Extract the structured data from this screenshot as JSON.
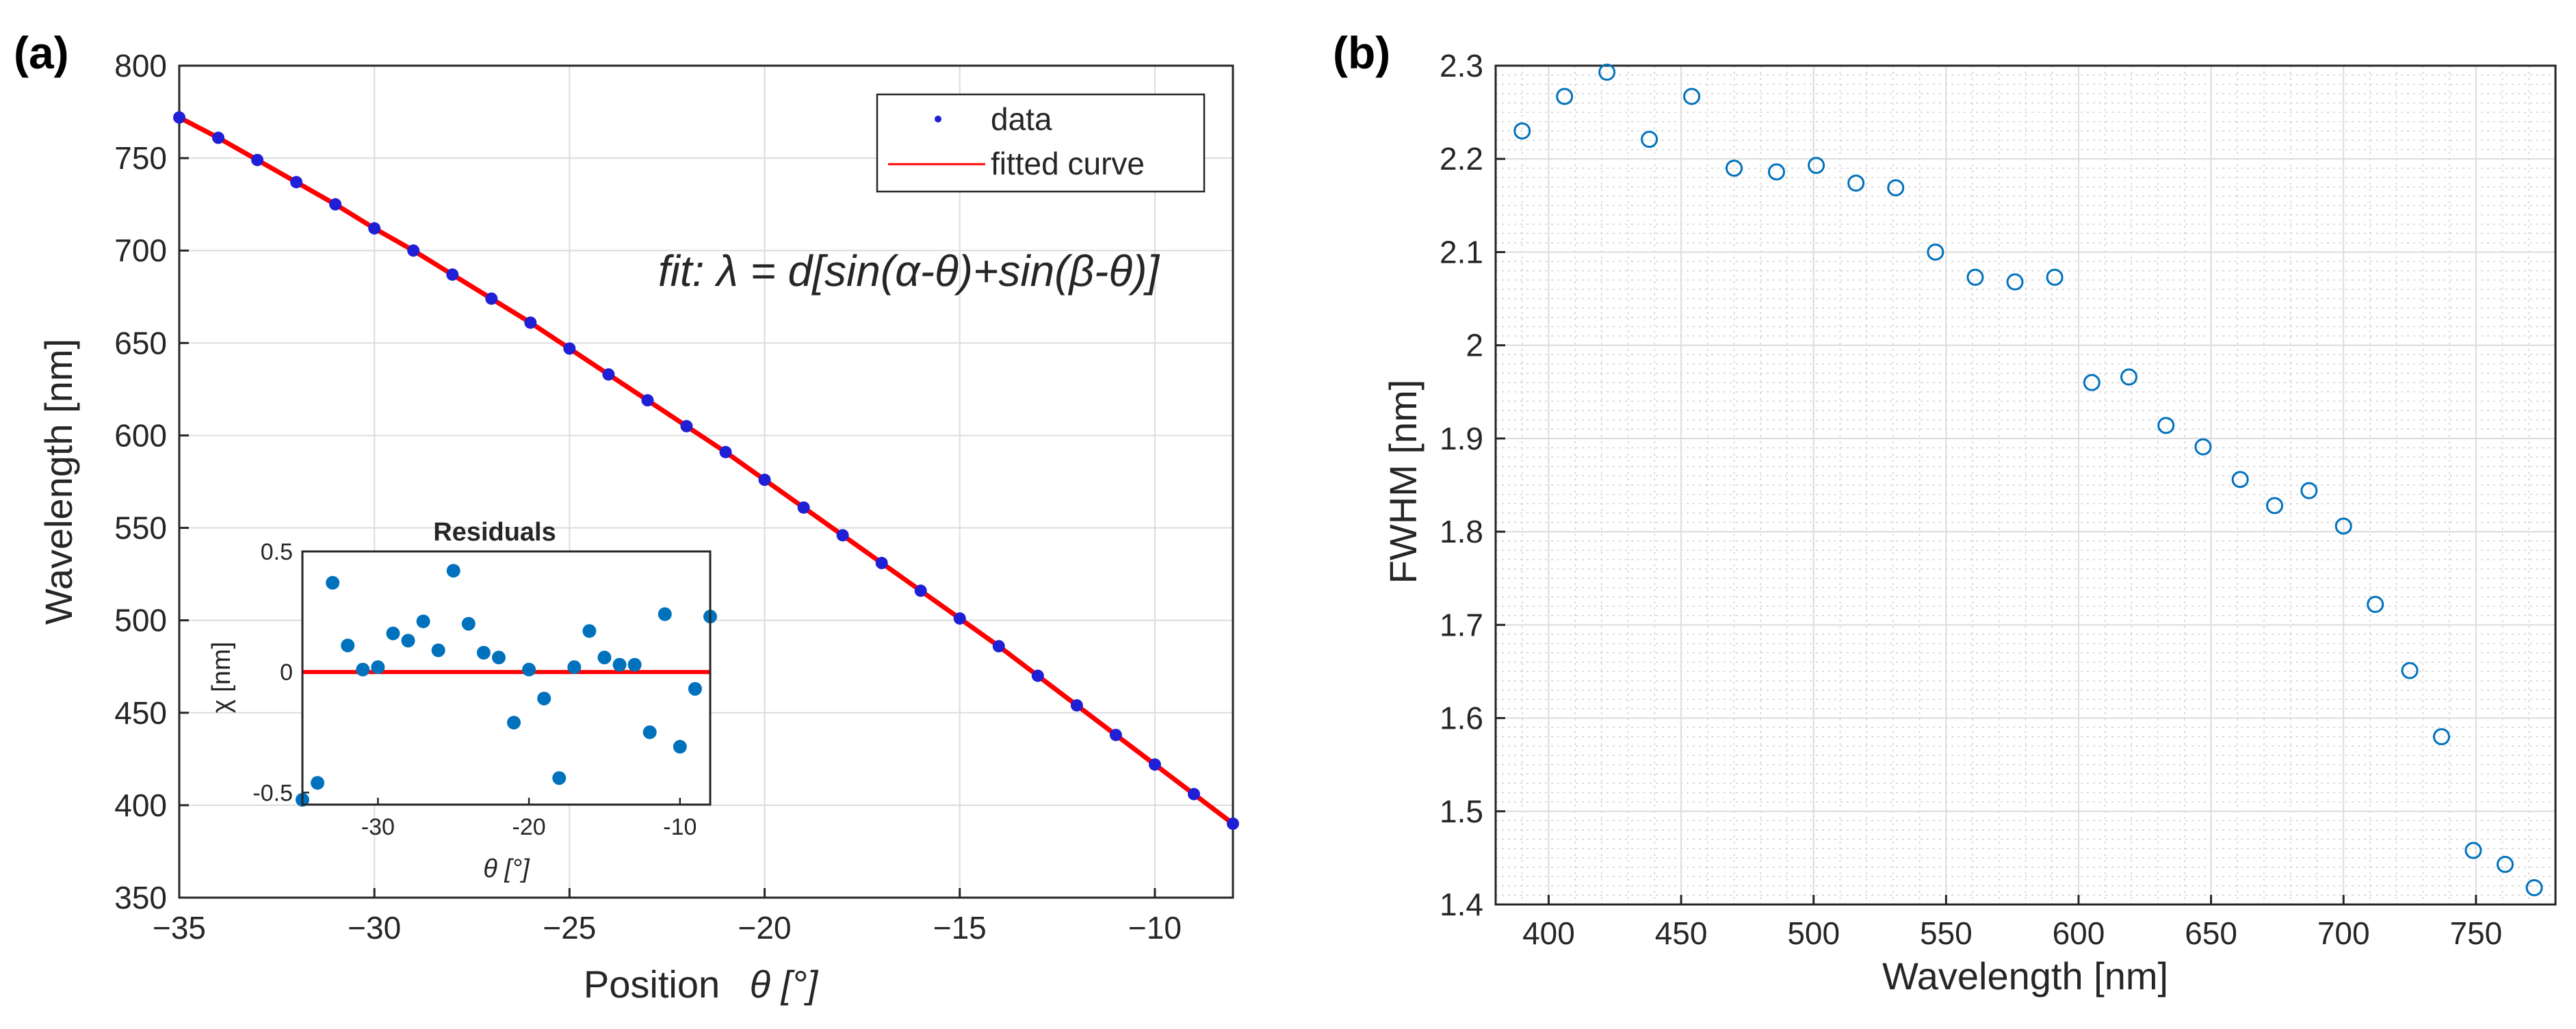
{
  "colors": {
    "data_blue": "#1f1fd6",
    "fit_red": "#ff0000",
    "residual_blue": "#0072bd",
    "scatter_blue": "#0072bd"
  },
  "chart_data": [
    {
      "panel": "(a)",
      "type": "line",
      "xlabel": "Position",
      "xlabel_symbol": "θ [°]",
      "ylabel": "Wavelength [nm]",
      "xlim": [
        -35,
        -8
      ],
      "ylim": [
        350,
        800
      ],
      "xticks": [
        -35,
        -30,
        -25,
        -20,
        -15,
        -10
      ],
      "xtick_labels": [
        "−35",
        "−30",
        "−25",
        "−20",
        "−15",
        "−10"
      ],
      "yticks": [
        350,
        400,
        450,
        500,
        550,
        600,
        650,
        700,
        750,
        800
      ],
      "grid": true,
      "annotation": "fit: λ = d[sin(α-θ)+sin(β-θ)]",
      "legend": {
        "location": "top-right",
        "entries": [
          "data",
          "fitted curve"
        ]
      },
      "series": [
        {
          "name": "data",
          "style": "points",
          "x": [
            -35,
            -34,
            -33,
            -32,
            -31,
            -30,
            -29,
            -28,
            -27,
            -26,
            -25,
            -24,
            -23,
            -22,
            -21,
            -20,
            -19,
            -18,
            -17,
            -16,
            -15,
            -14,
            -13,
            -12,
            -11,
            -10,
            -9,
            -8
          ],
          "y": [
            772,
            761,
            749,
            737,
            725,
            712,
            700,
            687,
            674,
            661,
            647,
            633,
            619,
            605,
            591,
            576,
            561,
            546,
            531,
            516,
            501,
            486,
            470,
            454,
            438,
            422,
            406,
            390
          ]
        },
        {
          "name": "fitted curve",
          "style": "line",
          "x": [
            -35,
            -34,
            -33,
            -32,
            -31,
            -30,
            -29,
            -28,
            -27,
            -26,
            -25,
            -24,
            -23,
            -22,
            -21,
            -20,
            -19,
            -18,
            -17,
            -16,
            -15,
            -14,
            -13,
            -12,
            -11,
            -10,
            -9,
            -8
          ],
          "y": [
            772,
            761,
            749,
            737,
            725,
            712,
            700,
            687,
            674,
            661,
            647,
            633,
            619,
            605,
            591,
            576,
            561,
            546,
            531,
            516,
            501,
            486,
            470,
            454,
            438,
            422,
            406,
            390
          ]
        }
      ]
    },
    {
      "panel": "inset",
      "type": "scatter",
      "title": "Residuals",
      "xlabel": "θ [°]",
      "ylabel": "χ [nm]",
      "xlim": [
        -35,
        -8
      ],
      "ylim": [
        -0.55,
        0.5
      ],
      "xticks": [
        -30,
        -20,
        -10
      ],
      "yticks": [
        -0.5,
        0,
        0.5
      ],
      "ytick_labels": [
        "-0.5",
        "0",
        "0.5"
      ],
      "zero_line": true,
      "x": [
        -35,
        -34,
        -33,
        -32,
        -31,
        -30,
        -29,
        -28,
        -27,
        -26,
        -25,
        -24,
        -23,
        -22,
        -21,
        -20,
        -19,
        -18,
        -17,
        -16,
        -15,
        -14,
        -13,
        -12,
        -11,
        -10,
        -9,
        -8
      ],
      "y": [
        -0.53,
        -0.46,
        0.37,
        0.11,
        0.01,
        0.02,
        0.16,
        0.13,
        0.21,
        0.09,
        0.42,
        0.2,
        0.08,
        0.06,
        -0.21,
        0.01,
        -0.11,
        -0.44,
        0.02,
        0.17,
        0.06,
        0.03,
        0.03,
        -0.25,
        0.24,
        -0.31,
        -0.07,
        0.23
      ]
    },
    {
      "panel": "(b)",
      "type": "scatter",
      "xlabel": "Wavelength [nm]",
      "ylabel": "FWHM [nm]",
      "xlim": [
        380,
        780
      ],
      "ylim": [
        1.4,
        2.3
      ],
      "xticks": [
        400,
        450,
        500,
        550,
        600,
        650,
        700,
        750
      ],
      "yticks": [
        1.4,
        1.5,
        1.6,
        1.7,
        1.8,
        1.9,
        2.0,
        2.1,
        2.2,
        2.3
      ],
      "ytick_labels": [
        "1.4",
        "1.5",
        "1.6",
        "1.7",
        "1.8",
        "1.9",
        "2",
        "2.1",
        "2.2",
        "2.3"
      ],
      "grid": true,
      "minor_grid": true,
      "marker": "open-circle",
      "x": [
        390,
        406,
        422,
        438,
        454,
        470,
        486,
        501,
        516,
        531,
        546,
        561,
        576,
        591,
        605,
        619,
        633,
        647,
        661,
        674,
        687,
        700,
        712,
        725,
        737,
        749,
        761,
        772
      ],
      "y": [
        2.23,
        2.267,
        2.293,
        2.221,
        2.267,
        2.19,
        2.186,
        2.193,
        2.174,
        2.169,
        2.1,
        2.073,
        2.068,
        2.073,
        1.96,
        1.966,
        1.914,
        1.891,
        1.856,
        1.828,
        1.844,
        1.806,
        1.722,
        1.651,
        1.58,
        1.458,
        1.443,
        1.418
      ]
    }
  ]
}
